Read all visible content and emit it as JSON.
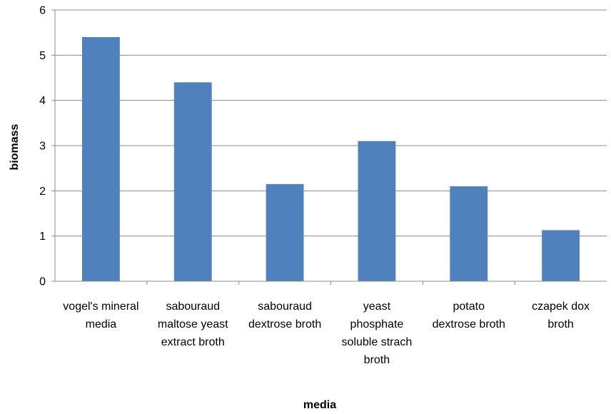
{
  "chart_data": {
    "type": "bar",
    "title": "",
    "xlabel": "media",
    "ylabel": "biomass",
    "ylim": [
      0,
      6
    ],
    "yticks": [
      0,
      1,
      2,
      3,
      4,
      5,
      6
    ],
    "grid": true,
    "legend": "none",
    "bar_color": "#4F81BD",
    "categories": [
      "vogel's mineral media",
      "sabouraud maltose yeast extract broth",
      "sabouraud dextrose broth",
      "yeast phosphate soluble strach broth",
      "potato dextrose broth",
      "czapek dox broth"
    ],
    "category_lines": [
      [
        "vogel's mineral",
        "media"
      ],
      [
        "sabouraud",
        "maltose yeast",
        "extract broth"
      ],
      [
        "sabouraud",
        "dextrose broth"
      ],
      [
        "yeast",
        "phosphate",
        "soluble strach",
        "broth"
      ],
      [
        "potato",
        "dextrose broth"
      ],
      [
        "czapek dox",
        "broth"
      ]
    ],
    "values": [
      5.4,
      4.4,
      2.15,
      3.1,
      2.1,
      1.13
    ]
  }
}
